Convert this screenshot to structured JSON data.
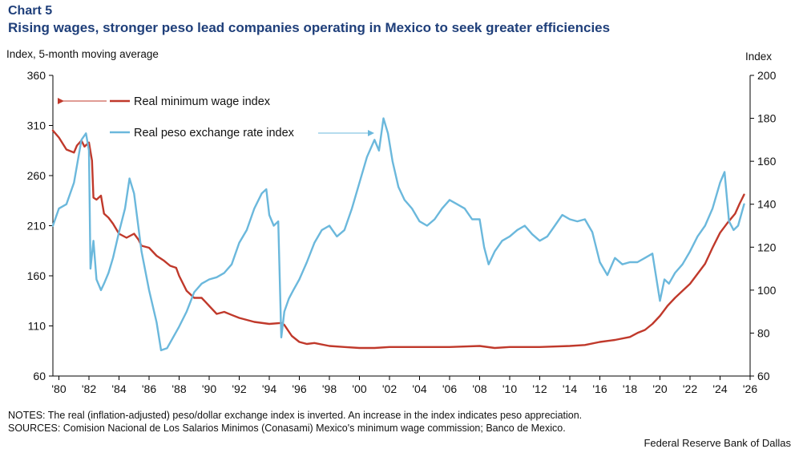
{
  "header": {
    "kicker": "Chart 5",
    "title": "Rising wages, stronger peso lead  companies operating in Mexico to seek greater efficiencies"
  },
  "footer": {
    "notes": "NOTES: The real (inflation-adjusted) peso/dollar exchange index is inverted. An increase in the index indicates peso appreciation.",
    "sources": "SOURCES: Comision Nacional de Los Salarios Minimos (Conasami) Mexico's minimum wage commission; Banco de Mexico.",
    "credit": "Federal Reserve Bank of Dallas"
  },
  "colors": {
    "wage": "#c0392b",
    "peso": "#6bb8dc",
    "axis": "#000000"
  },
  "chart_data": {
    "type": "line",
    "title": "Rising wages, stronger peso lead  companies operating in Mexico to seek greater efficiencies",
    "ylabel_left": "Index, 5-month moving average",
    "ylabel_right": "Index",
    "x_range": [
      1979.6,
      2026
    ],
    "ylim_left": [
      60,
      360
    ],
    "ylim_right": [
      60,
      200
    ],
    "left_ticks": [
      60,
      110,
      160,
      210,
      260,
      310,
      360
    ],
    "right_ticks": [
      60,
      80,
      100,
      120,
      140,
      160,
      180,
      200
    ],
    "x_ticks": [
      1980,
      1982,
      1984,
      1986,
      1988,
      1990,
      1992,
      1994,
      1996,
      1998,
      2000,
      2002,
      2004,
      2006,
      2008,
      2010,
      2012,
      2014,
      2016,
      2018,
      2020,
      2022,
      2024,
      2026
    ],
    "x_tick_labels": [
      "'80",
      "'82",
      "'84",
      "'86",
      "'88",
      "'90",
      "'92",
      "'94",
      "'96",
      "'98",
      "'00",
      "'02",
      "'04",
      "'06",
      "'08",
      "'10",
      "'12",
      "'14",
      "'16",
      "'18",
      "'20",
      "'22",
      "'24",
      "'26"
    ],
    "legend_entries": [
      "Real minimum wage index",
      "Real peso exchange rate index"
    ],
    "series": [
      {
        "name": "Real minimum wage index",
        "axis": "left",
        "x": [
          1979.6,
          1980.0,
          1980.5,
          1981.0,
          1981.2,
          1981.5,
          1981.7,
          1982.0,
          1982.2,
          1982.3,
          1982.5,
          1982.8,
          1983.0,
          1983.3,
          1983.6,
          1984.0,
          1984.5,
          1985.0,
          1985.3,
          1985.5,
          1986.0,
          1986.5,
          1987.0,
          1987.4,
          1987.8,
          1988.0,
          1988.5,
          1989.0,
          1989.5,
          1990.0,
          1990.5,
          1991.0,
          1991.5,
          1992.0,
          1993.0,
          1994.0,
          1994.8,
          1995.0,
          1995.5,
          1996.0,
          1996.5,
          1997.0,
          1998.0,
          1999.0,
          2000.0,
          2001.0,
          2002.0,
          2004.0,
          2006.0,
          2008.0,
          2009.0,
          2010.0,
          2012.0,
          2014.0,
          2015.0,
          2016.0,
          2017.0,
          2018.0,
          2018.5,
          2019.0,
          2019.5,
          2020.0,
          2020.5,
          2021.0,
          2021.5,
          2022.0,
          2022.5,
          2023.0,
          2023.5,
          2024.0,
          2024.5,
          2025.0,
          2025.3,
          2025.6
        ],
        "values": [
          305,
          298,
          286,
          283,
          290,
          295,
          289,
          293,
          275,
          238,
          236,
          240,
          222,
          218,
          212,
          202,
          198,
          202,
          196,
          190,
          188,
          180,
          175,
          170,
          168,
          160,
          145,
          138,
          138,
          130,
          122,
          124,
          121,
          118,
          114,
          112,
          113,
          111,
          100,
          94,
          92,
          93,
          90,
          89,
          88,
          88,
          89,
          89,
          89,
          90,
          88,
          89,
          89,
          90,
          91,
          94,
          96,
          99,
          103,
          106,
          112,
          120,
          130,
          138,
          145,
          152,
          162,
          172,
          188,
          203,
          213,
          222,
          232,
          241
        ]
      },
      {
        "name": "Real peso exchange rate index",
        "axis": "right",
        "x": [
          1979.6,
          1980.0,
          1980.5,
          1981.0,
          1981.5,
          1981.8,
          1982.0,
          1982.1,
          1982.3,
          1982.5,
          1982.8,
          1983.0,
          1983.3,
          1983.6,
          1984.0,
          1984.4,
          1984.7,
          1985.0,
          1985.5,
          1986.0,
          1986.5,
          1986.8,
          1987.2,
          1987.6,
          1988.0,
          1988.5,
          1989.0,
          1989.5,
          1990.0,
          1990.5,
          1991.0,
          1991.5,
          1992.0,
          1992.5,
          1993.0,
          1993.5,
          1993.8,
          1994.0,
          1994.3,
          1994.6,
          1994.8,
          1995.0,
          1995.3,
          1995.6,
          1996.0,
          1996.5,
          1997.0,
          1997.5,
          1998.0,
          1998.5,
          1999.0,
          1999.5,
          2000.0,
          2000.5,
          2001.0,
          2001.3,
          2001.6,
          2001.9,
          2002.2,
          2002.6,
          2003.0,
          2003.5,
          2004.0,
          2004.5,
          2005.0,
          2005.5,
          2006.0,
          2006.5,
          2007.0,
          2007.5,
          2008.0,
          2008.3,
          2008.6,
          2009.0,
          2009.5,
          2010.0,
          2010.5,
          2011.0,
          2011.5,
          2012.0,
          2012.5,
          2013.0,
          2013.5,
          2014.0,
          2014.5,
          2015.0,
          2015.5,
          2016.0,
          2016.5,
          2017.0,
          2017.5,
          2018.0,
          2018.5,
          2019.0,
          2019.5,
          2020.0,
          2020.3,
          2020.6,
          2021.0,
          2021.5,
          2022.0,
          2022.5,
          2023.0,
          2023.5,
          2024.0,
          2024.3,
          2024.6,
          2024.9,
          2025.2,
          2025.6
        ],
        "values": [
          130,
          138,
          140,
          150,
          170,
          173,
          165,
          110,
          123,
          105,
          100,
          103,
          108,
          115,
          127,
          138,
          152,
          145,
          118,
          100,
          85,
          72,
          73,
          78,
          83,
          90,
          99,
          103,
          105,
          106,
          108,
          112,
          122,
          128,
          138,
          145,
          147,
          135,
          130,
          132,
          78,
          90,
          96,
          100,
          105,
          113,
          122,
          128,
          130,
          125,
          128,
          138,
          150,
          162,
          170,
          165,
          180,
          173,
          160,
          148,
          142,
          138,
          132,
          130,
          133,
          138,
          142,
          140,
          138,
          133,
          133,
          120,
          112,
          118,
          123,
          125,
          128,
          130,
          126,
          123,
          125,
          130,
          135,
          133,
          132,
          133,
          127,
          113,
          107,
          115,
          112,
          113,
          113,
          115,
          117,
          95,
          105,
          103,
          108,
          112,
          118,
          125,
          130,
          138,
          150,
          155,
          132,
          128,
          130,
          140
        ]
      }
    ]
  }
}
